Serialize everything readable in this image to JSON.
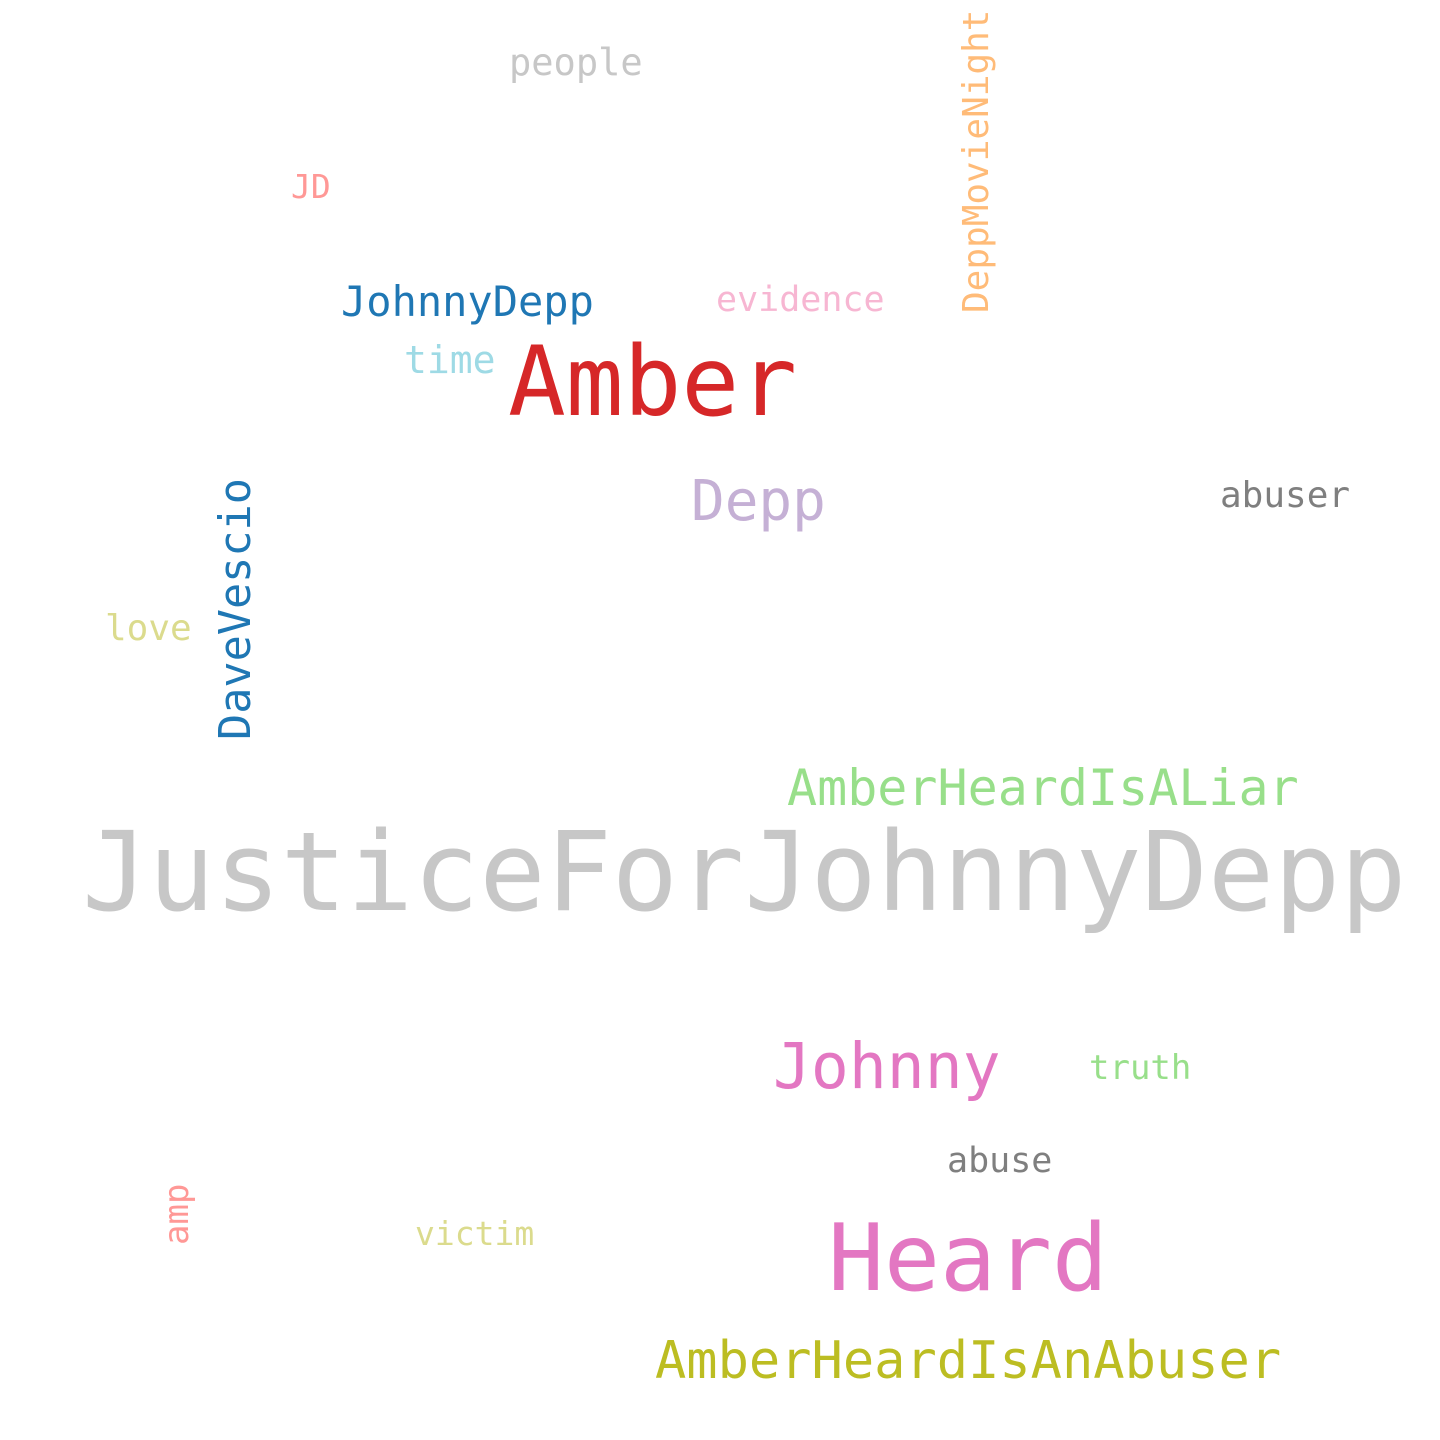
{
  "words": [
    {
      "text": "JusticeForJohnnyDepp",
      "color": "#c7c7c7"
    },
    {
      "text": "Amber",
      "color": "#d62728"
    },
    {
      "text": "Heard",
      "color": "#e377c2"
    },
    {
      "text": "Johnny",
      "color": "#e377c2"
    },
    {
      "text": "Depp",
      "color": "#c5b0d5"
    },
    {
      "text": "AmberHeardIsALiar",
      "color": "#98df8a"
    },
    {
      "text": "AmberHeardIsAnAbuser",
      "color": "#bcbd22"
    },
    {
      "text": "JohnnyDepp",
      "color": "#1f77b4"
    },
    {
      "text": "DaveVescio",
      "color": "#1f77b4"
    },
    {
      "text": "DeppMovieNight",
      "color": "#ffbb78"
    },
    {
      "text": "abuser",
      "color": "#7f7f7f"
    },
    {
      "text": "abuse",
      "color": "#7f7f7f"
    },
    {
      "text": "people",
      "color": "#c7c7c7"
    },
    {
      "text": "evidence",
      "color": "#f7b6d2"
    },
    {
      "text": "time",
      "color": "#9edae5"
    },
    {
      "text": "love",
      "color": "#dbdb8d"
    },
    {
      "text": "truth",
      "color": "#98df8a"
    },
    {
      "text": "victim",
      "color": "#dbdb8d"
    },
    {
      "text": "JD",
      "color": "#ff9896"
    },
    {
      "text": "amp",
      "color": "#ff9896"
    }
  ]
}
